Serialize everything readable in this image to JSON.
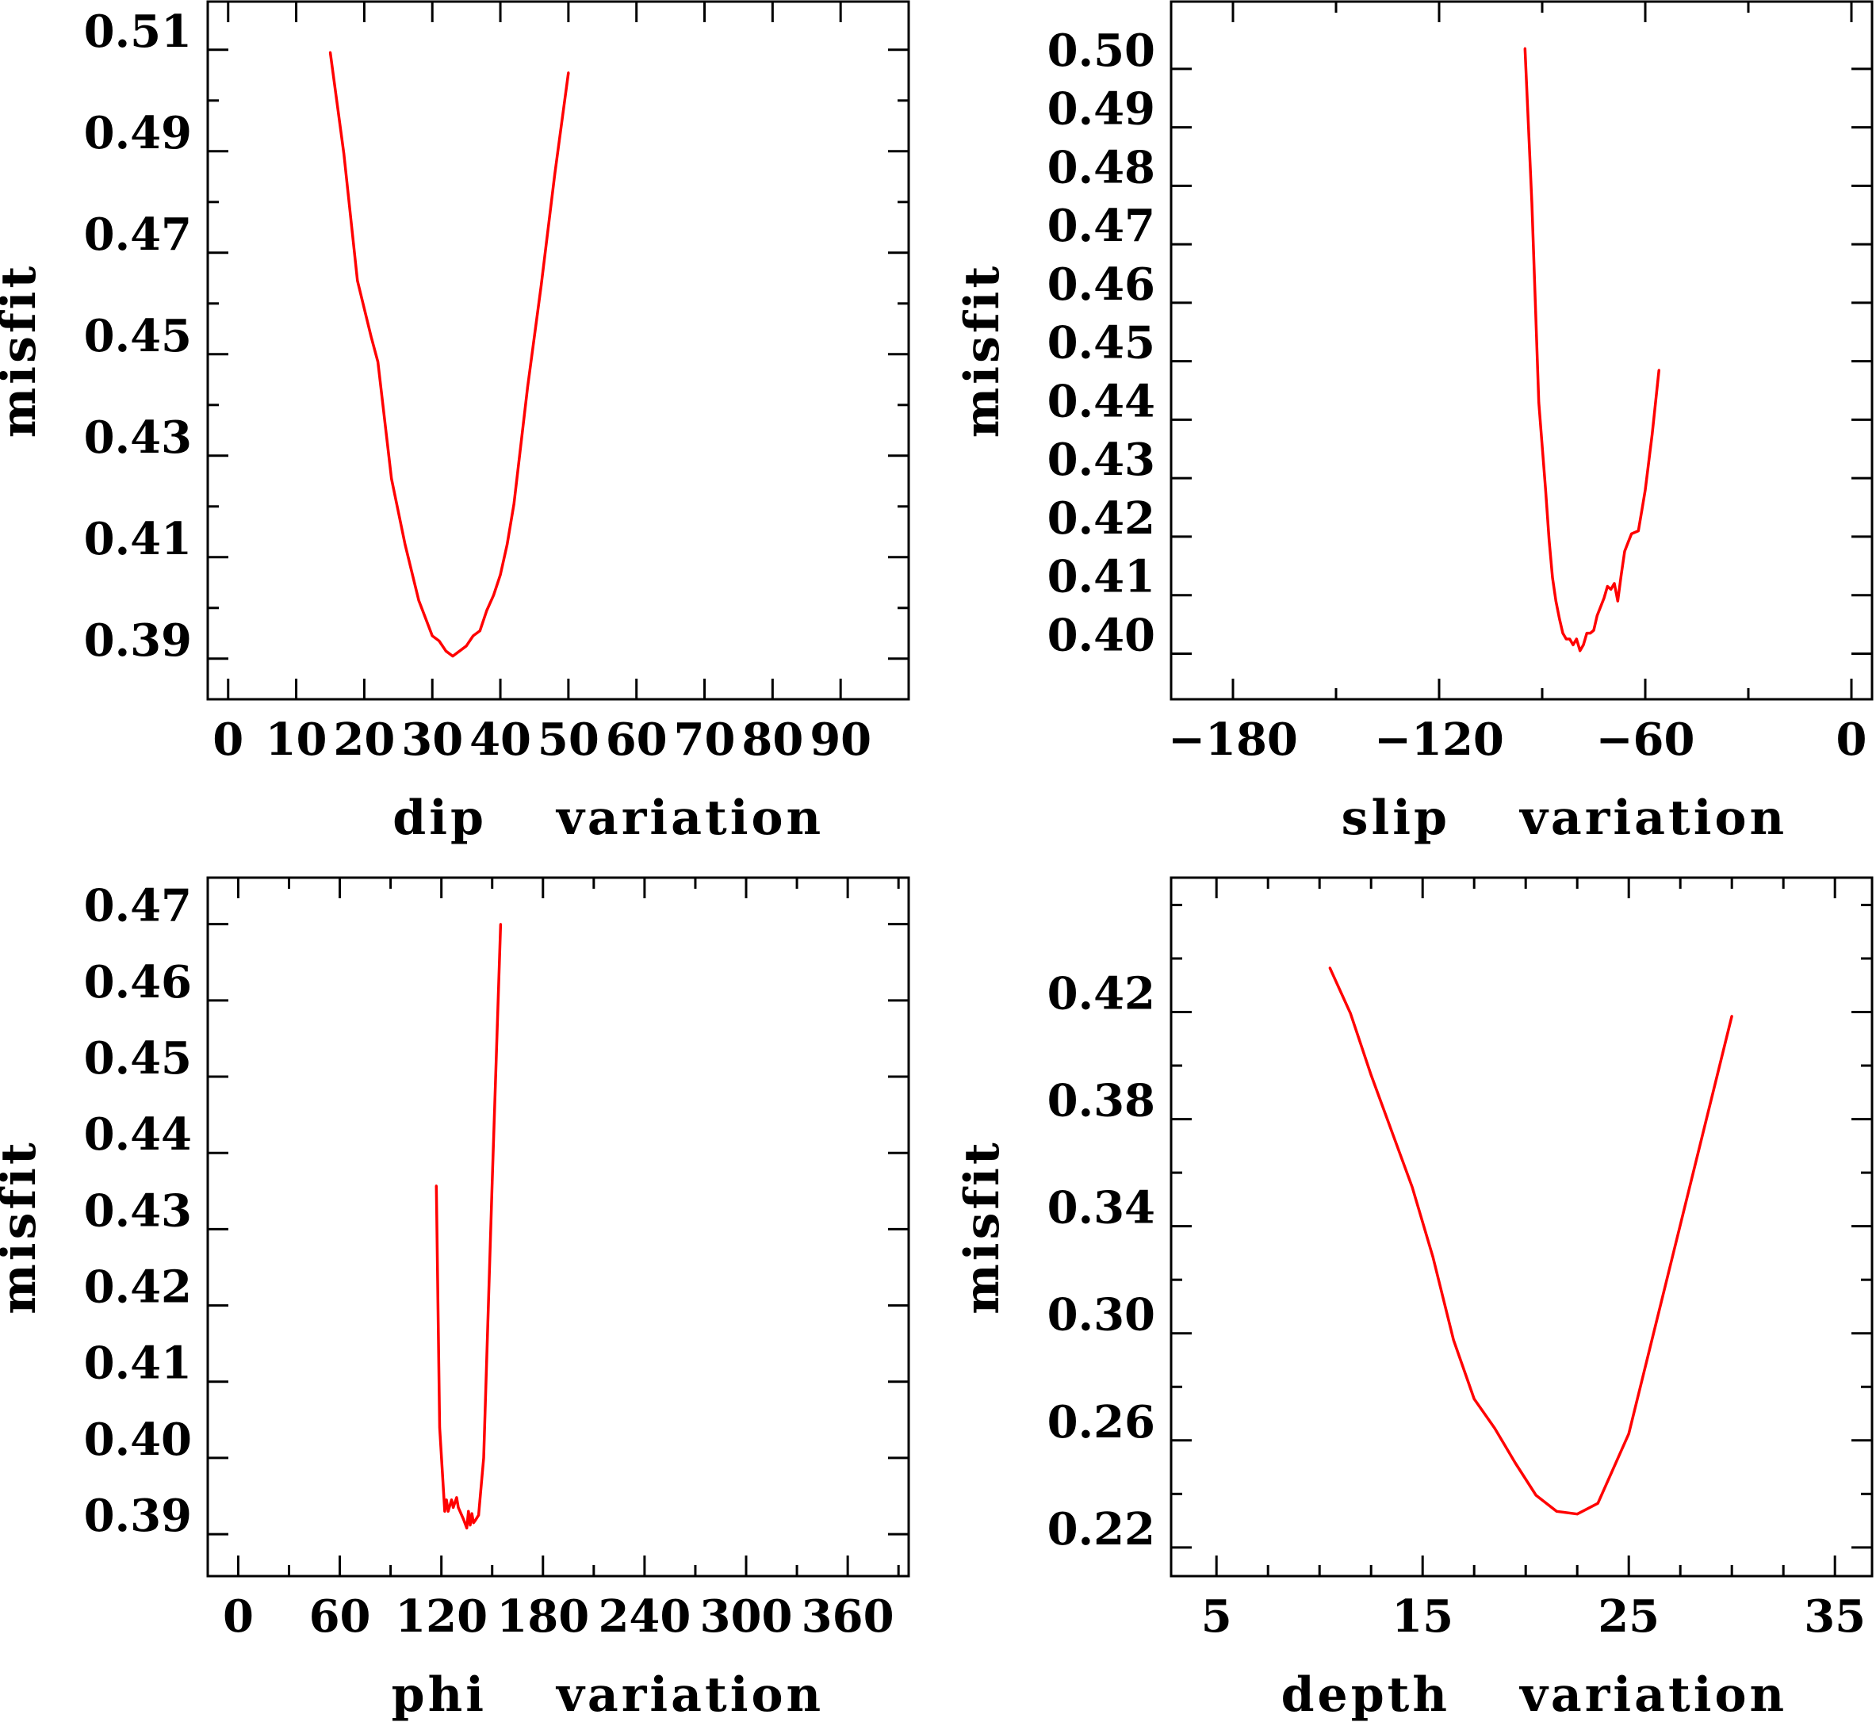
{
  "colors": {
    "line": "#ff0000",
    "axis": "#000000",
    "background": "#ffffff"
  },
  "chart_data": [
    {
      "id": "dip",
      "type": "line",
      "ylabel": "misfit",
      "xlabel_left": "dip",
      "xlabel_right": "variation",
      "xlim": [
        -3,
        100
      ],
      "ylim": [
        0.382,
        0.5195
      ],
      "xticks": [
        0,
        10,
        20,
        30,
        40,
        50,
        60,
        70,
        80,
        90
      ],
      "xtick_labels": [
        "0",
        "10",
        "20",
        "30",
        "40",
        "50",
        "60",
        "70",
        "80",
        "90"
      ],
      "yticks": [
        0.39,
        0.41,
        0.43,
        0.45,
        0.47,
        0.49,
        0.51
      ],
      "ytick_labels": [
        "0.39",
        "0.41",
        "0.43",
        "0.45",
        "0.47",
        "0.49",
        "0.51"
      ],
      "yminor_step": 0.01,
      "x": [
        15,
        17,
        19,
        21,
        22,
        24,
        26,
        28,
        30,
        31,
        32,
        33,
        34,
        35,
        36,
        37,
        38,
        39,
        40,
        41,
        42,
        44,
        46,
        48,
        50
      ],
      "y": [
        0.5095,
        0.4895,
        0.4645,
        0.4535,
        0.4485,
        0.4255,
        0.4125,
        0.4015,
        0.3945,
        0.3935,
        0.3915,
        0.3905,
        0.3915,
        0.3925,
        0.3945,
        0.3955,
        0.3995,
        0.4025,
        0.4065,
        0.4125,
        0.4205,
        0.4435,
        0.4635,
        0.4855,
        0.5055
      ]
    },
    {
      "id": "slip",
      "type": "line",
      "ylabel": "misfit",
      "xlabel_left": "slip",
      "xlabel_right": "variation",
      "xlim": [
        -198,
        6
      ],
      "ylim": [
        0.3922,
        0.5115
      ],
      "xticks": [
        -180,
        -120,
        -60,
        0
      ],
      "xtick_labels": [
        "−180",
        "−120",
        "−60",
        "0"
      ],
      "xminor_step": 30,
      "yticks": [
        0.4,
        0.41,
        0.42,
        0.43,
        0.44,
        0.45,
        0.46,
        0.47,
        0.48,
        0.49,
        0.5
      ],
      "ytick_labels": [
        "0.40",
        "0.41",
        "0.42",
        "0.43",
        "0.44",
        "0.45",
        "0.46",
        "0.47",
        "0.48",
        "0.49",
        "0.50"
      ],
      "x": [
        -95,
        -93,
        -91,
        -89,
        -88,
        -87,
        -86,
        -85,
        -84,
        -83,
        -82,
        -81,
        -80,
        -79,
        -78,
        -77,
        -76,
        -75,
        -74,
        -72,
        -71,
        -70,
        -69,
        -68,
        -67,
        -66,
        -65,
        -64,
        -62,
        -61,
        -60,
        -58,
        -56
      ],
      "y": [
        0.5035,
        0.477,
        0.443,
        0.428,
        0.4195,
        0.413,
        0.409,
        0.406,
        0.4035,
        0.4025,
        0.4025,
        0.4015,
        0.4025,
        0.4005,
        0.4015,
        0.4035,
        0.4035,
        0.404,
        0.4065,
        0.4095,
        0.4115,
        0.411,
        0.412,
        0.409,
        0.4135,
        0.4175,
        0.419,
        0.4205,
        0.421,
        0.4245,
        0.428,
        0.4375,
        0.4485
      ]
    },
    {
      "id": "phi",
      "type": "line",
      "ylabel": "misfit",
      "xlabel_left": "phi",
      "xlabel_right": "variation",
      "xlim": [
        -18,
        396
      ],
      "ylim": [
        0.3845,
        0.4761
      ],
      "xticks": [
        0,
        60,
        120,
        180,
        240,
        300,
        360
      ],
      "xtick_labels": [
        "0",
        "60",
        "120",
        "180",
        "240",
        "300",
        "360"
      ],
      "xminor_step": 30,
      "yticks": [
        0.39,
        0.4,
        0.41,
        0.42,
        0.43,
        0.44,
        0.45,
        0.46,
        0.47
      ],
      "ytick_labels": [
        "0.39",
        "0.40",
        "0.41",
        "0.42",
        "0.43",
        "0.44",
        "0.45",
        "0.46",
        "0.47"
      ],
      "x": [
        117,
        119,
        122,
        123,
        124,
        126,
        127,
        129,
        130,
        133,
        135,
        136,
        137,
        138,
        139,
        140,
        142,
        145,
        150,
        155
      ],
      "y": [
        0.4357,
        0.404,
        0.393,
        0.3945,
        0.393,
        0.3945,
        0.3935,
        0.3948,
        0.3935,
        0.392,
        0.3908,
        0.393,
        0.3912,
        0.3927,
        0.3915,
        0.3918,
        0.3925,
        0.4,
        0.436,
        0.47
      ]
    },
    {
      "id": "depth",
      "type": "line",
      "ylabel": "misfit",
      "xlabel_left": "depth",
      "xlabel_right": "variation",
      "xlim": [
        2.8,
        36.8
      ],
      "ylim": [
        0.2093,
        0.4702
      ],
      "xticks": [
        5,
        15,
        25,
        35
      ],
      "xtick_labels": [
        "5",
        "15",
        "25",
        "35"
      ],
      "xminor_step": 2.5,
      "yticks": [
        0.22,
        0.26,
        0.3,
        0.34,
        0.38,
        0.42
      ],
      "ytick_labels": [
        "0.22",
        "0.26",
        "0.30",
        "0.34",
        "0.38",
        "0.42"
      ],
      "yminor_step": 0.02,
      "x": [
        10.5,
        11.5,
        12.5,
        13.5,
        14.5,
        15.5,
        16.5,
        17.5,
        18.5,
        19.5,
        20.5,
        21.5,
        22.5,
        23.5,
        25,
        27.5,
        30
      ],
      "y": [
        0.4365,
        0.4195,
        0.3965,
        0.3755,
        0.3545,
        0.3285,
        0.2975,
        0.2755,
        0.2645,
        0.2515,
        0.2395,
        0.2335,
        0.2325,
        0.2365,
        0.2625,
        0.3405,
        0.4185
      ]
    }
  ]
}
